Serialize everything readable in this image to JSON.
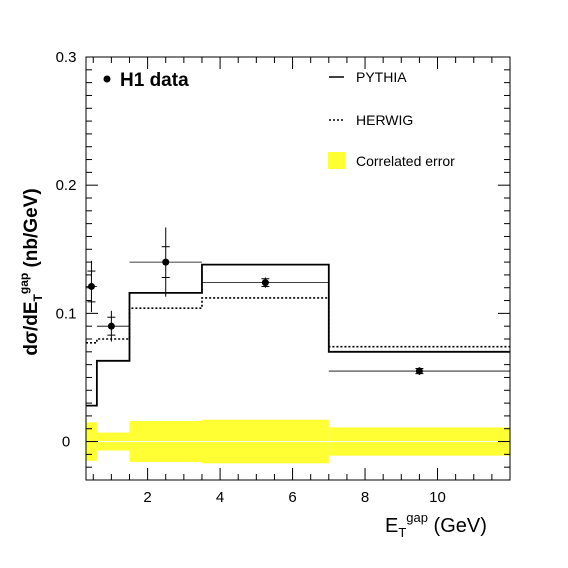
{
  "chart_data": {
    "type": "line",
    "title": "",
    "xlabel": {
      "main": "E",
      "sub": "T",
      "sup": "gap",
      "unit": " (GeV)"
    },
    "ylabel": {
      "pre": "dσ/dE",
      "sub": "T",
      "sup": "gap",
      "unit": " (nb/GeV)"
    },
    "xlim": [
      0.3,
      12.0
    ],
    "ylim": [
      -0.03,
      0.3
    ],
    "xticks": [
      2,
      4,
      6,
      8,
      10
    ],
    "xtick_labels": [
      "2",
      "4",
      "6",
      "8",
      "10"
    ],
    "yticks": [
      0,
      0.1,
      0.2,
      0.3
    ],
    "ytick_labels": [
      "0",
      "0.1",
      "0.2",
      "0.3"
    ],
    "legend_position": "top",
    "legend": {
      "data_label": "H1 data",
      "pythia_label": "PYTHIA",
      "herwig_label": "HERWIG",
      "error_label": "Correlated error"
    },
    "colors": {
      "error_band": "#ffff33",
      "marks": "#000000"
    },
    "bins": [
      {
        "lo": 0.3,
        "hi": 0.6
      },
      {
        "lo": 0.6,
        "hi": 1.5
      },
      {
        "lo": 1.5,
        "hi": 3.5
      },
      {
        "lo": 3.5,
        "hi": 7.0
      },
      {
        "lo": 7.0,
        "hi": 12.0
      }
    ],
    "series": [
      {
        "name": "H1 data",
        "x": [
          0.45,
          1.0,
          2.5,
          5.25,
          9.5
        ],
        "y": [
          0.121,
          0.09,
          0.14,
          0.124,
          0.055
        ],
        "err_stat": [
          0.012,
          0.007,
          0.012,
          0.003,
          0.002
        ],
        "err_total": [
          0.02,
          0.012,
          0.027,
          0.004,
          0.003
        ]
      },
      {
        "name": "PYTHIA",
        "style": "solid",
        "values": [
          0.028,
          0.063,
          0.116,
          0.138,
          0.07
        ]
      },
      {
        "name": "HERWIG",
        "style": "dotted",
        "values": [
          0.077,
          0.08,
          0.104,
          0.112,
          0.074
        ]
      },
      {
        "name": "Correlated error",
        "style": "band",
        "half_width": [
          0.015,
          0.007,
          0.016,
          0.017,
          0.011
        ]
      }
    ]
  }
}
